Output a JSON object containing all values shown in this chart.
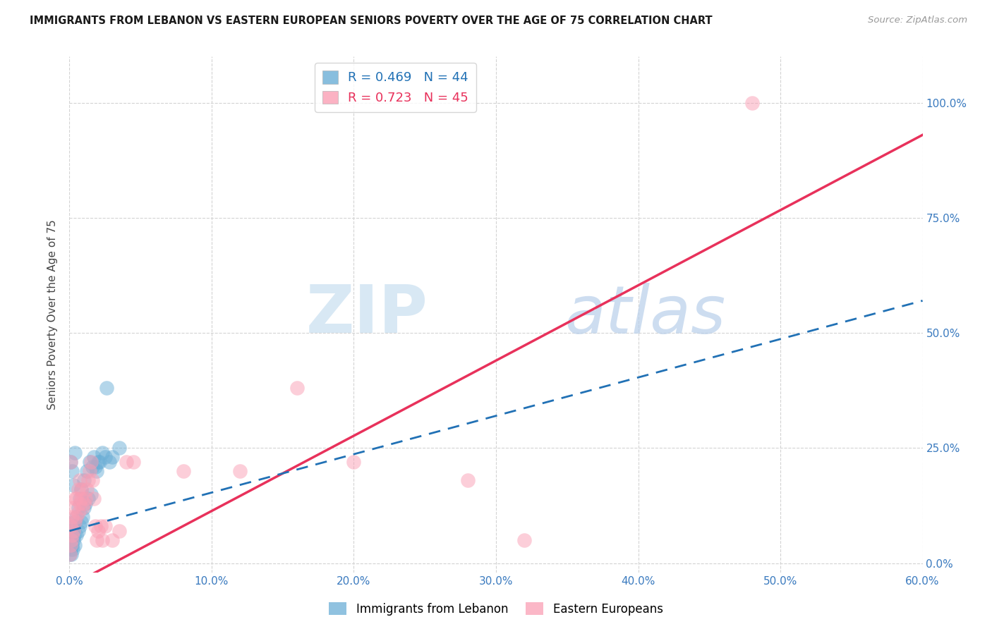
{
  "title": "IMMIGRANTS FROM LEBANON VS EASTERN EUROPEAN SENIORS POVERTY OVER THE AGE OF 75 CORRELATION CHART",
  "source": "Source: ZipAtlas.com",
  "ylabel": "Seniors Poverty Over the Age of 75",
  "legend_blue_label": "Immigrants from Lebanon",
  "legend_pink_label": "Eastern Europeans",
  "R_blue": 0.469,
  "N_blue": 44,
  "R_pink": 0.723,
  "N_pink": 45,
  "xlim": [
    0.0,
    0.6
  ],
  "ylim": [
    -0.02,
    1.1
  ],
  "xlabel_vals": [
    0.0,
    0.1,
    0.2,
    0.3,
    0.4,
    0.5,
    0.6
  ],
  "xlabel_ticks": [
    "0.0%",
    "10.0%",
    "20.0%",
    "30.0%",
    "40.0%",
    "50.0%",
    "60.0%"
  ],
  "ylabel_vals": [
    0.0,
    0.25,
    0.5,
    0.75,
    1.0
  ],
  "ylabel_ticks": [
    "0.0%",
    "25.0%",
    "50.0%",
    "75.0%",
    "100.0%"
  ],
  "blue_scatter": [
    [
      0.0005,
      0.02
    ],
    [
      0.001,
      0.03
    ],
    [
      0.001,
      0.05
    ],
    [
      0.0015,
      0.02
    ],
    [
      0.002,
      0.04
    ],
    [
      0.002,
      0.07
    ],
    [
      0.0025,
      0.03
    ],
    [
      0.003,
      0.05
    ],
    [
      0.003,
      0.08
    ],
    [
      0.0035,
      0.06
    ],
    [
      0.004,
      0.04
    ],
    [
      0.004,
      0.09
    ],
    [
      0.005,
      0.06
    ],
    [
      0.005,
      0.1
    ],
    [
      0.006,
      0.07
    ],
    [
      0.006,
      0.12
    ],
    [
      0.007,
      0.08
    ],
    [
      0.007,
      0.14
    ],
    [
      0.008,
      0.09
    ],
    [
      0.008,
      0.16
    ],
    [
      0.009,
      0.1
    ],
    [
      0.01,
      0.12
    ],
    [
      0.01,
      0.18
    ],
    [
      0.011,
      0.13
    ],
    [
      0.012,
      0.2
    ],
    [
      0.013,
      0.14
    ],
    [
      0.014,
      0.22
    ],
    [
      0.015,
      0.15
    ],
    [
      0.016,
      0.21
    ],
    [
      0.017,
      0.23
    ],
    [
      0.018,
      0.21
    ],
    [
      0.019,
      0.2
    ],
    [
      0.02,
      0.22
    ],
    [
      0.021,
      0.22
    ],
    [
      0.023,
      0.24
    ],
    [
      0.025,
      0.23
    ],
    [
      0.026,
      0.38
    ],
    [
      0.028,
      0.22
    ],
    [
      0.03,
      0.23
    ],
    [
      0.035,
      0.25
    ],
    [
      0.001,
      0.22
    ],
    [
      0.002,
      0.2
    ],
    [
      0.003,
      0.17
    ],
    [
      0.004,
      0.24
    ]
  ],
  "pink_scatter": [
    [
      0.0005,
      0.02
    ],
    [
      0.001,
      0.04
    ],
    [
      0.001,
      0.08
    ],
    [
      0.0015,
      0.05
    ],
    [
      0.002,
      0.06
    ],
    [
      0.002,
      0.1
    ],
    [
      0.003,
      0.07
    ],
    [
      0.003,
      0.12
    ],
    [
      0.004,
      0.09
    ],
    [
      0.004,
      0.14
    ],
    [
      0.005,
      0.1
    ],
    [
      0.005,
      0.14
    ],
    [
      0.006,
      0.11
    ],
    [
      0.006,
      0.16
    ],
    [
      0.007,
      0.13
    ],
    [
      0.007,
      0.18
    ],
    [
      0.008,
      0.14
    ],
    [
      0.008,
      0.16
    ],
    [
      0.009,
      0.12
    ],
    [
      0.01,
      0.13
    ],
    [
      0.011,
      0.14
    ],
    [
      0.012,
      0.16
    ],
    [
      0.013,
      0.18
    ],
    [
      0.014,
      0.2
    ],
    [
      0.015,
      0.22
    ],
    [
      0.016,
      0.18
    ],
    [
      0.017,
      0.14
    ],
    [
      0.018,
      0.08
    ],
    [
      0.019,
      0.05
    ],
    [
      0.02,
      0.07
    ],
    [
      0.022,
      0.08
    ],
    [
      0.023,
      0.05
    ],
    [
      0.025,
      0.08
    ],
    [
      0.03,
      0.05
    ],
    [
      0.035,
      0.07
    ],
    [
      0.04,
      0.22
    ],
    [
      0.045,
      0.22
    ],
    [
      0.08,
      0.2
    ],
    [
      0.12,
      0.2
    ],
    [
      0.16,
      0.38
    ],
    [
      0.2,
      0.22
    ],
    [
      0.28,
      0.18
    ],
    [
      0.32,
      0.05
    ],
    [
      0.48,
      1.0
    ],
    [
      0.001,
      0.22
    ]
  ],
  "bg_color": "#ffffff",
  "blue_color": "#6baed6",
  "pink_color": "#fa9fb5",
  "trendline_blue_color": "#2171b5",
  "trendline_pink_color": "#e8315b",
  "watermark_color": "#c8d8e8",
  "grid_color": "#d3d3d3"
}
